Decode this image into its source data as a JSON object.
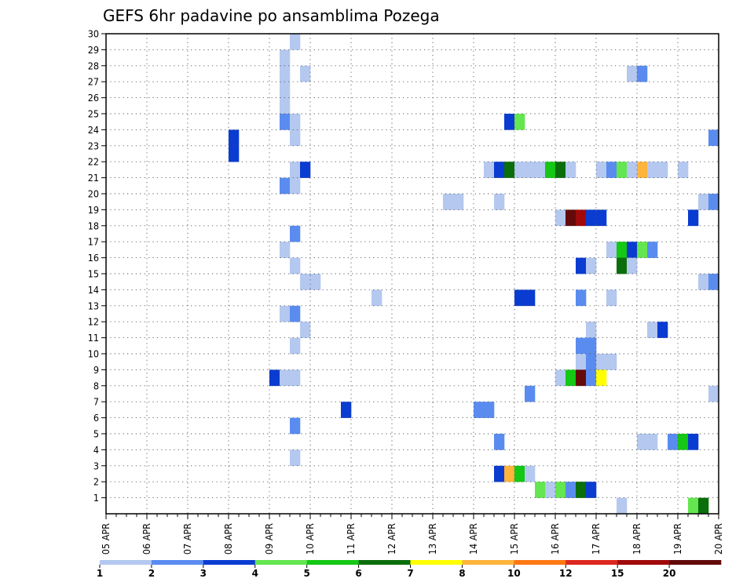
{
  "chart_data": {
    "type": "heatmap",
    "title": "GEFS 6hr padavine po ansamblima Pozega",
    "x_labels": [
      "05 APR",
      "06 APR",
      "07 APR",
      "08 APR",
      "09 APR",
      "10 APR",
      "11 APR",
      "12 APR",
      "13 APR",
      "14 APR",
      "15 APR",
      "16 APR",
      "17 APR",
      "18 APR",
      "19 APR",
      "20 APR"
    ],
    "y_labels": [
      "1",
      "2",
      "3",
      "4",
      "5",
      "6",
      "7",
      "8",
      "9",
      "10",
      "11",
      "12",
      "13",
      "14",
      "15",
      "16",
      "17",
      "18",
      "19",
      "20",
      "21",
      "22",
      "23",
      "24",
      "25",
      "26",
      "27",
      "28",
      "29",
      "30"
    ],
    "x_unit": "6-hour steps from 05 APR 00Z",
    "y_range": [
      0,
      30
    ],
    "x_range": [
      0,
      60
    ],
    "grid": true,
    "legend": {
      "position": "bottom",
      "boundaries": [
        "1",
        "2",
        "3",
        "4",
        "5",
        "6",
        "7",
        "8",
        "10",
        "12",
        "15",
        "20"
      ],
      "colors": [
        "#b4c8f0",
        "#5a8cf0",
        "#0a3cd2",
        "#64e650",
        "#14c814",
        "#0a6e0a",
        "#ffff00",
        "#ffb43c",
        "#ff7814",
        "#dc281e",
        "#a00a0a",
        "#640a0a"
      ]
    },
    "cells": [
      [
        18,
        29,
        0
      ],
      [
        17,
        28,
        0
      ],
      [
        17,
        27,
        0
      ],
      [
        19,
        27,
        0
      ],
      [
        51,
        27,
        0
      ],
      [
        52,
        27,
        1
      ],
      [
        17,
        26,
        0
      ],
      [
        17,
        25,
        0
      ],
      [
        17,
        24,
        1
      ],
      [
        18,
        24,
        0
      ],
      [
        39,
        24,
        2
      ],
      [
        40,
        24,
        3
      ],
      [
        18,
        23,
        0
      ],
      [
        59,
        23,
        1
      ],
      [
        12,
        23,
        2
      ],
      [
        12,
        22,
        2
      ],
      [
        18,
        21,
        0
      ],
      [
        19,
        21,
        2
      ],
      [
        37,
        21,
        0
      ],
      [
        38,
        21,
        2
      ],
      [
        39,
        21,
        5
      ],
      [
        40,
        21,
        0
      ],
      [
        41,
        21,
        0
      ],
      [
        42,
        21,
        0
      ],
      [
        43,
        21,
        4
      ],
      [
        44,
        21,
        5
      ],
      [
        45,
        21,
        0
      ],
      [
        48,
        21,
        0
      ],
      [
        49,
        21,
        1
      ],
      [
        50,
        21,
        3
      ],
      [
        51,
        21,
        0
      ],
      [
        52,
        21,
        7
      ],
      [
        53,
        21,
        0
      ],
      [
        54,
        21,
        0
      ],
      [
        56,
        21,
        0
      ],
      [
        17,
        20,
        1
      ],
      [
        18,
        20,
        0
      ],
      [
        33,
        19,
        0
      ],
      [
        34,
        19,
        0
      ],
      [
        38,
        19,
        0
      ],
      [
        58,
        19,
        0
      ],
      [
        59,
        19,
        1
      ],
      [
        44,
        18,
        0
      ],
      [
        45,
        18,
        11
      ],
      [
        46,
        18,
        10
      ],
      [
        47,
        18,
        2
      ],
      [
        48,
        18,
        2
      ],
      [
        57,
        18,
        2
      ],
      [
        18,
        17,
        1
      ],
      [
        17,
        16,
        0
      ],
      [
        49,
        16,
        0
      ],
      [
        50,
        16,
        4
      ],
      [
        51,
        16,
        2
      ],
      [
        52,
        16,
        3
      ],
      [
        53,
        16,
        1
      ],
      [
        18,
        15,
        0
      ],
      [
        46,
        15,
        2
      ],
      [
        47,
        15,
        0
      ],
      [
        50,
        15,
        5
      ],
      [
        51,
        15,
        0
      ],
      [
        19,
        14,
        0
      ],
      [
        20,
        14,
        0
      ],
      [
        58,
        14,
        0
      ],
      [
        59,
        14,
        1
      ],
      [
        26,
        13,
        0
      ],
      [
        40,
        13,
        2
      ],
      [
        41,
        13,
        2
      ],
      [
        46,
        13,
        1
      ],
      [
        49,
        13,
        0
      ],
      [
        17,
        12,
        0
      ],
      [
        18,
        12,
        1
      ],
      [
        19,
        11,
        0
      ],
      [
        47,
        11,
        0
      ],
      [
        53,
        11,
        0
      ],
      [
        54,
        11,
        2
      ],
      [
        18,
        10,
        0
      ],
      [
        46,
        10,
        1
      ],
      [
        47,
        10,
        1
      ],
      [
        46,
        9,
        0
      ],
      [
        47,
        9,
        1
      ],
      [
        48,
        9,
        0
      ],
      [
        49,
        9,
        0
      ],
      [
        44,
        8,
        0
      ],
      [
        45,
        8,
        4
      ],
      [
        46,
        8,
        11
      ],
      [
        47,
        8,
        1
      ],
      [
        48,
        8,
        6
      ],
      [
        16,
        8,
        2
      ],
      [
        17,
        8,
        0
      ],
      [
        18,
        8,
        0
      ],
      [
        41,
        7,
        1
      ],
      [
        59,
        7,
        0
      ],
      [
        23,
        6,
        2
      ],
      [
        36,
        6,
        1
      ],
      [
        37,
        6,
        1
      ],
      [
        18,
        5,
        1
      ],
      [
        38,
        4,
        1
      ],
      [
        52,
        4,
        0
      ],
      [
        53,
        4,
        0
      ],
      [
        55,
        4,
        1
      ],
      [
        56,
        4,
        4
      ],
      [
        57,
        4,
        2
      ],
      [
        18,
        3,
        0
      ],
      [
        38,
        2,
        2
      ],
      [
        39,
        2,
        7
      ],
      [
        40,
        2,
        4
      ],
      [
        41,
        2,
        0
      ],
      [
        42,
        1,
        3
      ],
      [
        43,
        1,
        0
      ],
      [
        44,
        1,
        3
      ],
      [
        45,
        1,
        1
      ],
      [
        46,
        1,
        5
      ],
      [
        47,
        1,
        2
      ],
      [
        50,
        0,
        0
      ],
      [
        57,
        0,
        3
      ],
      [
        58,
        0,
        5
      ]
    ]
  }
}
